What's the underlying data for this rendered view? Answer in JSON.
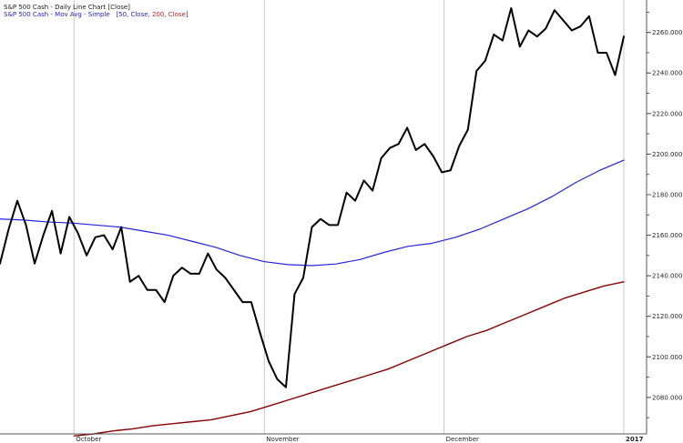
{
  "legend": {
    "line1": "S&P 500 Cash - Daily Line Chart [Close]",
    "line2_prefix": "S&P 500 Cash - Mov Avg - Simple",
    "line2_params_open": "[50, Close, ",
    "line2_params_red": "200, Close",
    "line2_params_close": "]"
  },
  "colors": {
    "price": "#000000",
    "ma50": "#1f24e0",
    "ma200": "#8b0000",
    "grid": "#c8c8c8",
    "axis": "#555555"
  },
  "chart_data": {
    "type": "line",
    "x_axis": {
      "labels": [
        {
          "label": "October",
          "index": 14
        },
        {
          "label": "November",
          "index": 50
        },
        {
          "label": "December",
          "index": 84
        },
        {
          "label": "2017",
          "index": 118,
          "bold": true
        }
      ],
      "n_points": 119
    },
    "y_axis": {
      "ylim": [
        2062,
        2276
      ],
      "ticks": [
        2080,
        2100,
        2120,
        2140,
        2160,
        2180,
        2200,
        2220,
        2240,
        2260
      ],
      "tick_labels": [
        "2080.000",
        "2100.000",
        "2120.000",
        "2140.000",
        "2160.000",
        "2180.000",
        "2200.000",
        "2220.000",
        "2240.000",
        "2260.000"
      ],
      "position": "right"
    },
    "grid": {
      "vertical_at_month_starts": true,
      "horizontal": false
    },
    "series": [
      {
        "key": "price",
        "index_start": 0,
        "values": [
          2146,
          2163,
          2177,
          2165,
          2146,
          2160,
          2172,
          2151,
          2169,
          2161,
          2150,
          2159,
          2160,
          2153,
          2164,
          2137,
          2140,
          2133,
          2133,
          2127,
          2140,
          2144,
          2141,
          2141,
          2151,
          2143,
          2139,
          2133,
          2127,
          2127,
          2112,
          2098,
          2089,
          2085,
          2131,
          2139,
          2164,
          2168,
          2165,
          2165,
          2181,
          2177,
          2187,
          2182,
          2198,
          2203,
          2205,
          2213,
          2202,
          2205,
          2199,
          2191,
          2192,
          2204,
          2212,
          2241,
          2246,
          2259,
          2256,
          2272,
          2253,
          2261,
          2258,
          2262,
          2271,
          2266,
          2261,
          2263,
          2268,
          2250,
          2250,
          2239,
          2258
        ]
      },
      {
        "key": "ma50",
        "index_start": 0,
        "values": [
          2168,
          2167.5,
          2166.5,
          2166,
          2165,
          2164,
          2162,
          2160,
          2157,
          2154,
          2150,
          2147,
          2145.5,
          2145,
          2145.8,
          2148,
          2151.5,
          2154.5,
          2156,
          2159,
          2163,
          2168,
          2173,
          2179,
          2186,
          2192,
          2197
        ]
      },
      {
        "key": "ma200",
        "index_start": 0,
        "values": [
          2061,
          2062,
          2063.5,
          2064.5,
          2066,
          2067,
          2068,
          2069,
          2071,
          2073,
          2076,
          2079,
          2082,
          2085,
          2088,
          2091,
          2094,
          2098,
          2102,
          2106,
          2110,
          2113,
          2117,
          2121,
          2125,
          2129,
          2132,
          2135,
          2137
        ]
      }
    ]
  }
}
